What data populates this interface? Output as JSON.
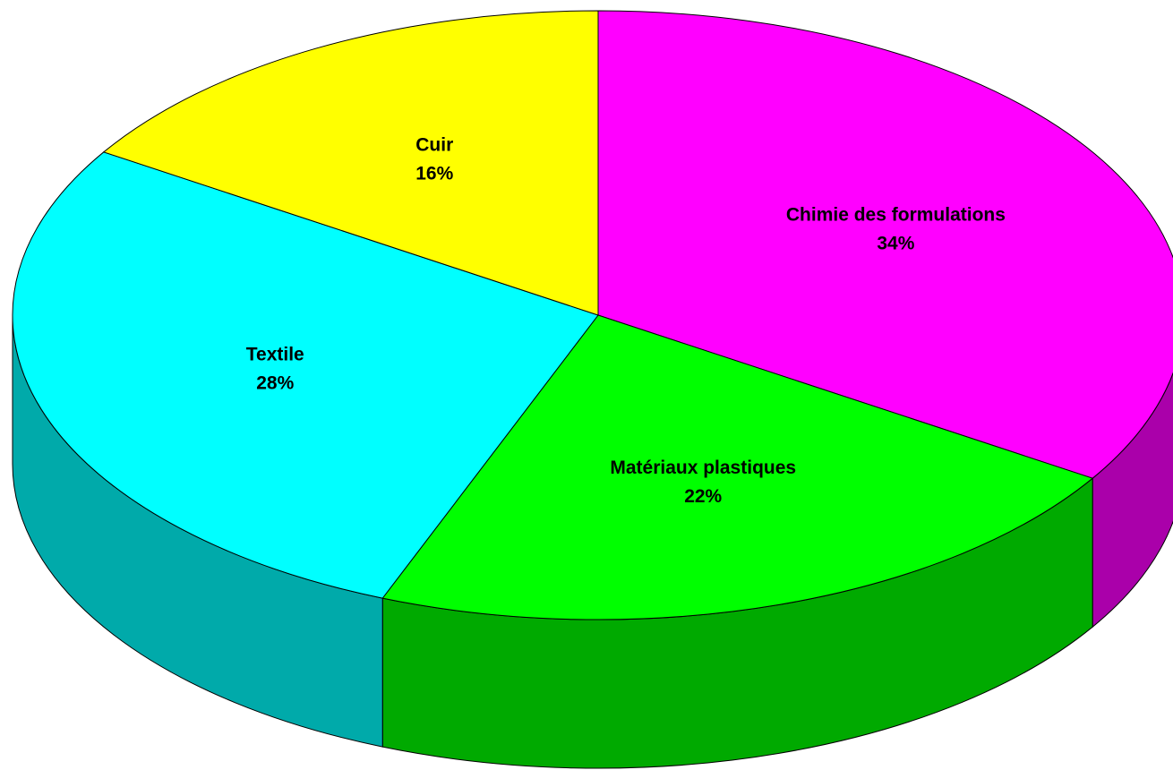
{
  "chart_data": {
    "type": "pie",
    "categories": [
      "Chimie des formulations",
      "Matériaux plastiques",
      "Textile",
      "Cuir"
    ],
    "values": [
      34,
      22,
      28,
      16
    ],
    "value_labels": [
      "34%",
      "22%",
      "28%",
      "16%"
    ],
    "colors": [
      "#ff00ff",
      "#00ff00",
      "#00ffff",
      "#ffff00"
    ]
  }
}
